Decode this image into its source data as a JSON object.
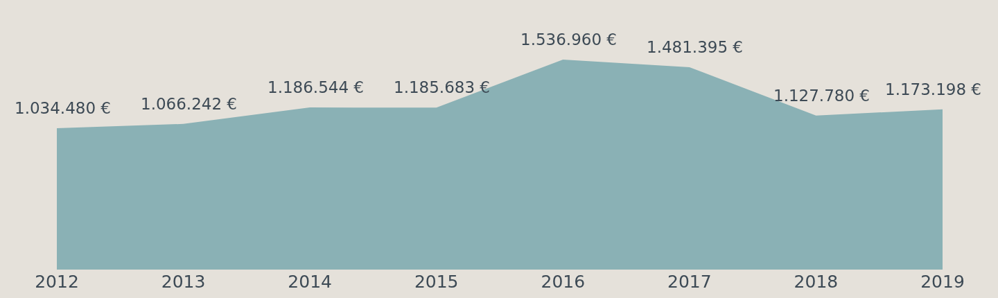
{
  "chart_data": {
    "type": "area",
    "categories": [
      "2012",
      "2013",
      "2014",
      "2015",
      "2016",
      "2017",
      "2018",
      "2019"
    ],
    "series": [
      {
        "color": "#8ab1b5",
        "values": [
          1034480,
          1066242,
          1186544,
          1185683,
          1536960,
          1481395,
          1127780,
          1173198
        ],
        "value_labels": [
          "1.034.480 €",
          "1.066.242 €",
          "1.186.544 €",
          "1.185.683 €",
          "1.536.960 €",
          "1.481.395 €",
          "1.127.780 €",
          "1.173.198 €"
        ]
      }
    ],
    "grid": false
  }
}
